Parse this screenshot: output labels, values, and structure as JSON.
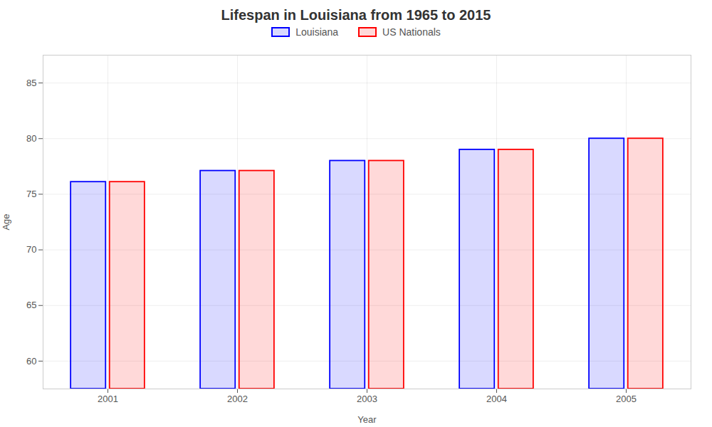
{
  "chart_data": {
    "type": "bar",
    "title": "Lifespan in Louisiana from 1965 to 2015",
    "xlabel": "Year",
    "ylabel": "Age",
    "categories": [
      "2001",
      "2002",
      "2003",
      "2004",
      "2005"
    ],
    "series": [
      {
        "name": "Louisiana",
        "color": "#0000ff",
        "values": [
          76.1,
          77.1,
          78.0,
          79.0,
          80.0
        ]
      },
      {
        "name": "US Nationals",
        "color": "#ff0000",
        "values": [
          76.1,
          77.1,
          78.0,
          79.0,
          80.0
        ]
      }
    ],
    "ylim": [
      57.5,
      87.5
    ],
    "yticks": [
      60,
      65,
      70,
      75,
      80,
      85
    ],
    "grid": true,
    "legend": "upper center"
  }
}
